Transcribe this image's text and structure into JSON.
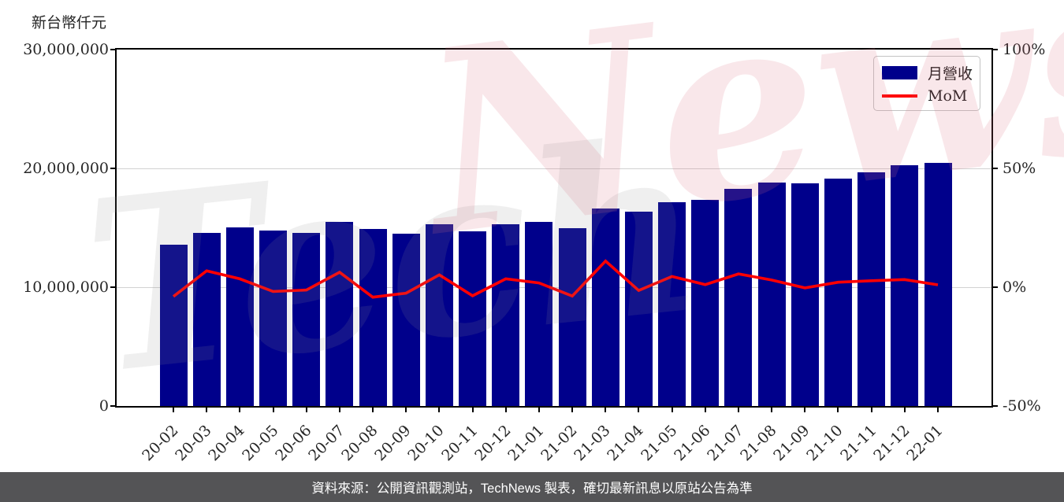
{
  "figure": {
    "unit_label": "新台幣仟元",
    "footer_text": "資料來源：公開資訊觀測站，TechNews 製表，確切最新訊息以原站公告為準",
    "watermark": {
      "part1": "Tech",
      "part2": "News"
    }
  },
  "legend": {
    "bar_label": "月營收",
    "line_label": "MoM"
  },
  "colors": {
    "bar": "#00008B",
    "line": "#FF0000",
    "grid": "#d2d2d2",
    "footer_bg": "#545456",
    "watermark_gray": "#eeeeee",
    "watermark_pink": "#fbe7e8"
  },
  "axes": {
    "y_left": {
      "tick_labels": [
        "30,000,000",
        "20,000,000",
        "10,000,000",
        "0"
      ],
      "tick_values": [
        30000000,
        20000000,
        10000000,
        0
      ]
    },
    "y_right": {
      "tick_labels": [
        "100%",
        "50%",
        "0%",
        "-50%"
      ],
      "tick_values": [
        100,
        50,
        0,
        -50
      ]
    }
  },
  "chart_data": {
    "type": "bar",
    "title": "",
    "xlabel": "",
    "ylabel_left": "新台幣仟元",
    "ylabel_right": "%",
    "grid": "horizontal (at 10,000,000 / 0% and 20,000,000 / 50%)",
    "legend_position": "upper right",
    "y_left_range": [
      0,
      30000000
    ],
    "y_right_range": [
      -50,
      100
    ],
    "categories": [
      "20-02",
      "20-03",
      "20-04",
      "20-05",
      "20-06",
      "20-07",
      "20-08",
      "20-09",
      "20-10",
      "20-11",
      "20-12",
      "21-01",
      "21-02",
      "21-03",
      "21-04",
      "21-05",
      "21-06",
      "21-07",
      "21-08",
      "21-09",
      "21-10",
      "21-11",
      "21-12",
      "22-01"
    ],
    "series": [
      {
        "name": "月營收",
        "type": "bar",
        "axis": "left",
        "unit": "新台幣仟元",
        "values": [
          13600000,
          14600000,
          15050000,
          14750000,
          14600000,
          15500000,
          14880000,
          14500000,
          15300000,
          14720000,
          15300000,
          15520000,
          14970000,
          16620000,
          16340000,
          17170000,
          17350000,
          18300000,
          18810000,
          18760000,
          19140000,
          19650000,
          20280000,
          20470000
        ]
      },
      {
        "name": "MoM",
        "type": "line",
        "axis": "right",
        "unit": "%",
        "values": [
          -3.9,
          6.9,
          3.5,
          -1.8,
          -1.2,
          6.3,
          -4.2,
          -2.5,
          5.2,
          -3.6,
          3.5,
          1.8,
          -3.7,
          11.0,
          -1.4,
          4.5,
          1.1,
          5.6,
          3.0,
          -0.3,
          2.1,
          2.7,
          3.2,
          1.0
        ]
      }
    ]
  }
}
